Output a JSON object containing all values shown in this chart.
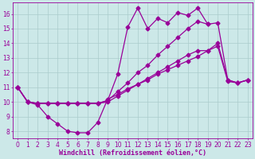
{
  "background_color": "#cce8e8",
  "grid_color": "#aacccc",
  "line_color": "#990099",
  "marker": "D",
  "markersize": 2.5,
  "linewidth": 0.9,
  "xlabel": "Windchill (Refroidissement éolien,°C)",
  "xlabel_fontsize": 6.0,
  "tick_fontsize": 5.5,
  "xlim": [
    -0.5,
    23.5
  ],
  "ylim": [
    7.5,
    16.8
  ],
  "xticks": [
    0,
    1,
    2,
    3,
    4,
    5,
    6,
    7,
    8,
    9,
    10,
    11,
    12,
    13,
    14,
    15,
    16,
    17,
    18,
    19,
    20,
    21,
    22,
    23
  ],
  "yticks": [
    8,
    9,
    10,
    11,
    12,
    13,
    14,
    15,
    16
  ],
  "line1_x": [
    0,
    1,
    2,
    3,
    4,
    5,
    6,
    7,
    8,
    9,
    10,
    11,
    12,
    13,
    14,
    15,
    16,
    17,
    18,
    19,
    20,
    21,
    22,
    23
  ],
  "line1_y": [
    11.0,
    10.0,
    9.8,
    9.0,
    8.5,
    8.0,
    7.9,
    7.9,
    8.6,
    10.2,
    10.5,
    10.9,
    11.2,
    11.5,
    11.9,
    12.2,
    12.5,
    12.8,
    13.1,
    13.5,
    14.0,
    11.5,
    11.3,
    11.5
  ],
  "line2_x": [
    0,
    1,
    2,
    3,
    4,
    5,
    6,
    7,
    8,
    9,
    10,
    11,
    12,
    13,
    14,
    15,
    16,
    17,
    18,
    19,
    20,
    21,
    22,
    23
  ],
  "line2_y": [
    11.0,
    10.0,
    9.9,
    9.9,
    9.9,
    9.9,
    9.9,
    9.9,
    9.9,
    10.0,
    10.4,
    10.8,
    11.2,
    11.6,
    12.0,
    12.4,
    12.8,
    13.2,
    13.5,
    13.5,
    13.8,
    11.4,
    11.3,
    11.5
  ],
  "line3_x": [
    0,
    1,
    2,
    3,
    4,
    5,
    6,
    7,
    8,
    9,
    10,
    11,
    12,
    13,
    14,
    15,
    16,
    17,
    18,
    19,
    20,
    21,
    22,
    23
  ],
  "line3_y": [
    11.0,
    10.0,
    9.9,
    9.9,
    9.9,
    9.9,
    9.9,
    9.9,
    9.9,
    10.1,
    10.7,
    11.3,
    12.0,
    12.5,
    13.2,
    13.8,
    14.4,
    15.0,
    15.5,
    15.3,
    15.4,
    11.5,
    11.3,
    11.5
  ],
  "line4_x": [
    0,
    1,
    2,
    3,
    4,
    5,
    6,
    7,
    8,
    9,
    10,
    11,
    12,
    13,
    14,
    15,
    16,
    17,
    18,
    19
  ],
  "line4_y": [
    11.0,
    10.0,
    9.9,
    9.9,
    9.9,
    9.9,
    9.9,
    9.9,
    9.9,
    10.1,
    11.9,
    15.1,
    16.4,
    15.0,
    15.7,
    15.4,
    16.1,
    15.9,
    16.4,
    15.3
  ]
}
